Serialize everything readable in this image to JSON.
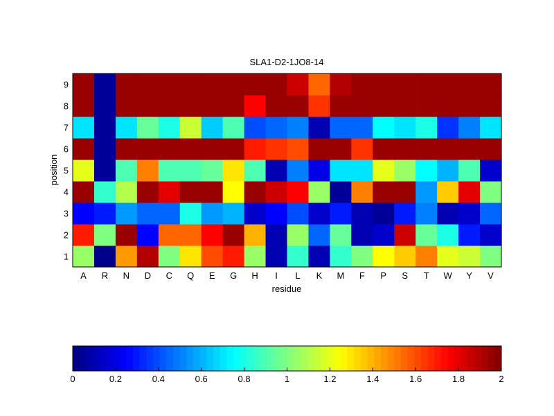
{
  "chart_data": {
    "type": "heatmap",
    "title": "SLA1-D2-1JO8-14",
    "xlabel": "residue",
    "ylabel": "position",
    "x_categories": [
      "A",
      "R",
      "N",
      "D",
      "C",
      "Q",
      "E",
      "G",
      "H",
      "I",
      "L",
      "K",
      "M",
      "F",
      "P",
      "S",
      "T",
      "W",
      "Y",
      "V"
    ],
    "y_categories": [
      "1",
      "2",
      "3",
      "4",
      "5",
      "6",
      "7",
      "8",
      "9"
    ],
    "values": [
      [
        1.05,
        0.02,
        1.45,
        1.9,
        1.0,
        1.3,
        1.6,
        1.7,
        1.05,
        0.1,
        0.85,
        0.1,
        0.85,
        1.0,
        1.25,
        1.35,
        1.5,
        1.2,
        1.15,
        1.0
      ],
      [
        1.7,
        1.0,
        1.95,
        0.25,
        1.55,
        1.55,
        1.75,
        1.95,
        1.4,
        0.1,
        1.05,
        0.45,
        0.95,
        0.1,
        0.15,
        1.85,
        0.95,
        0.8,
        0.3,
        0.15
      ],
      [
        0.25,
        0.3,
        0.55,
        0.45,
        0.45,
        0.8,
        0.55,
        0.6,
        0.15,
        0.25,
        0.4,
        0.15,
        0.3,
        0.1,
        0.05,
        0.3,
        0.5,
        0.1,
        0.15,
        0.45
      ],
      [
        1.95,
        0.85,
        1.1,
        1.95,
        1.8,
        1.95,
        1.95,
        1.25,
        1.95,
        1.85,
        1.75,
        1.05,
        0.05,
        1.5,
        1.95,
        1.95,
        0.55,
        1.35,
        1.8,
        1.0
      ],
      [
        1.2,
        0.05,
        0.9,
        1.5,
        0.9,
        0.9,
        0.95,
        1.3,
        0.9,
        0.1,
        0.5,
        0.2,
        0.7,
        0.7,
        1.2,
        1.05,
        0.75,
        0.6,
        0.9,
        0.15
      ],
      [
        1.95,
        0.05,
        1.95,
        1.95,
        1.95,
        1.95,
        1.95,
        1.95,
        1.7,
        1.65,
        1.6,
        1.95,
        1.95,
        1.65,
        1.95,
        1.95,
        1.95,
        1.95,
        1.95,
        1.95
      ],
      [
        0.7,
        0.05,
        0.7,
        0.95,
        0.8,
        1.15,
        0.65,
        0.9,
        0.4,
        0.45,
        0.5,
        0.1,
        0.45,
        0.45,
        0.75,
        0.7,
        0.8,
        0.35,
        0.5,
        0.7
      ],
      [
        1.95,
        0.05,
        1.95,
        1.95,
        1.95,
        1.95,
        1.95,
        1.95,
        1.75,
        1.95,
        1.95,
        1.65,
        1.95,
        1.95,
        1.95,
        1.95,
        1.95,
        1.95,
        1.95,
        1.95
      ],
      [
        1.95,
        0.05,
        1.95,
        1.95,
        1.95,
        1.95,
        1.95,
        1.95,
        1.95,
        1.95,
        1.85,
        1.55,
        1.9,
        1.95,
        1.95,
        1.95,
        1.95,
        1.95,
        1.95,
        1.95
      ]
    ],
    "colormap": "jet",
    "clim": [
      0,
      2
    ],
    "colorbar": {
      "orientation": "horizontal",
      "placement": "bottom",
      "ticks": [
        "0",
        "0.2",
        "0.4",
        "0.6",
        "0.8",
        "1",
        "1.2",
        "1.4",
        "1.6",
        "1.8",
        "2"
      ]
    },
    "grid": false
  }
}
